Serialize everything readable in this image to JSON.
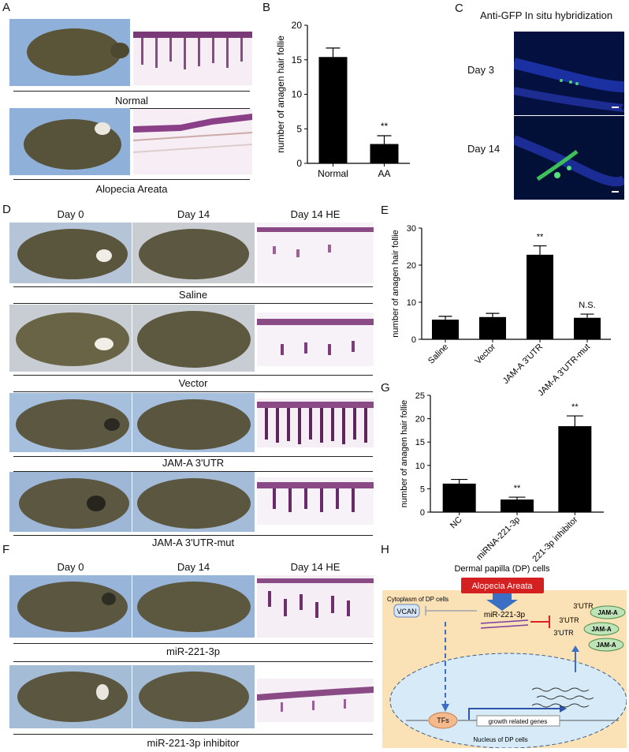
{
  "panel_letters": {
    "a": "A",
    "b": "B",
    "c": "C",
    "d": "D",
    "e": "E",
    "f": "F",
    "g": "G",
    "h": "H"
  },
  "panel_a": {
    "caption_top": "Normal",
    "caption_bottom": "Alopecia Areata"
  },
  "panel_c": {
    "title": "Anti-GFP In situ hybridization",
    "row1": "Day 3",
    "row2": "Day 14"
  },
  "panel_d": {
    "headers": [
      "Day 0",
      "Day 14",
      "Day 14 HE"
    ],
    "captions": [
      "Saline",
      "Vector",
      "JAM-A 3'UTR",
      "JAM-A 3'UTR-mut"
    ]
  },
  "panel_f": {
    "headers": [
      "Day 0",
      "Day 14",
      "Day 14 HE"
    ],
    "captions": [
      "miR-221-3p",
      "miR-221-3p inhibitor"
    ]
  },
  "chart_data": [
    {
      "id": "B",
      "type": "bar",
      "categories": [
        "Normal",
        "AA"
      ],
      "values": [
        15.4,
        2.8
      ],
      "errors": [
        1.3,
        1.2
      ],
      "annotations": [
        "",
        "**"
      ],
      "ylabel": "number of anagen hair follie",
      "ylim": [
        0,
        20
      ],
      "yticks": [
        0,
        5,
        10,
        15,
        20
      ],
      "grid": false,
      "xlabel_rotation": 0
    },
    {
      "id": "E",
      "type": "bar",
      "categories": [
        "Saline",
        "Vector",
        "JAM-A 3'UTR",
        "JAM-A 3'UTR-mut"
      ],
      "values": [
        5.3,
        6.0,
        22.8,
        5.8
      ],
      "errors": [
        0.9,
        1.0,
        2.4,
        1.0
      ],
      "annotations": [
        "",
        "",
        "**",
        "N.S."
      ],
      "ylabel": "number of anagen hair follie",
      "ylim": [
        0,
        30
      ],
      "yticks": [
        0,
        10,
        20,
        30
      ],
      "grid": false,
      "xlabel_rotation": -45
    },
    {
      "id": "G",
      "type": "bar",
      "categories": [
        "NC",
        "miRNA-221-3p",
        "221-3p inhibitor"
      ],
      "values": [
        6.1,
        2.7,
        18.4
      ],
      "errors": [
        0.9,
        0.5,
        2.2
      ],
      "annotations": [
        "",
        "**",
        "**"
      ],
      "ylabel": "number of anagen hair follie",
      "ylim": [
        0,
        25
      ],
      "yticks": [
        0,
        5,
        10,
        15,
        20,
        25
      ],
      "grid": false,
      "xlabel_rotation": -45
    }
  ],
  "diagram": {
    "title": "Dermal papilla (DP) cells",
    "trigger": "Alopecia Areata",
    "cytoplasm": "Cytoplasm of DP cells",
    "vcan": "VCAN",
    "mir": "miR-221-3p",
    "utr": "3'UTR",
    "jama": "JAM-A",
    "tfs": "TFs",
    "genes": "growth related genes",
    "nucleus": "Nucleus of DP cells",
    "colors": {
      "trigger": "#d42020",
      "cell": "#fbe2b6",
      "nucleus": "#d6ebf7",
      "jama": "#bfe3b8",
      "arrow": "#3a6fc4"
    }
  }
}
